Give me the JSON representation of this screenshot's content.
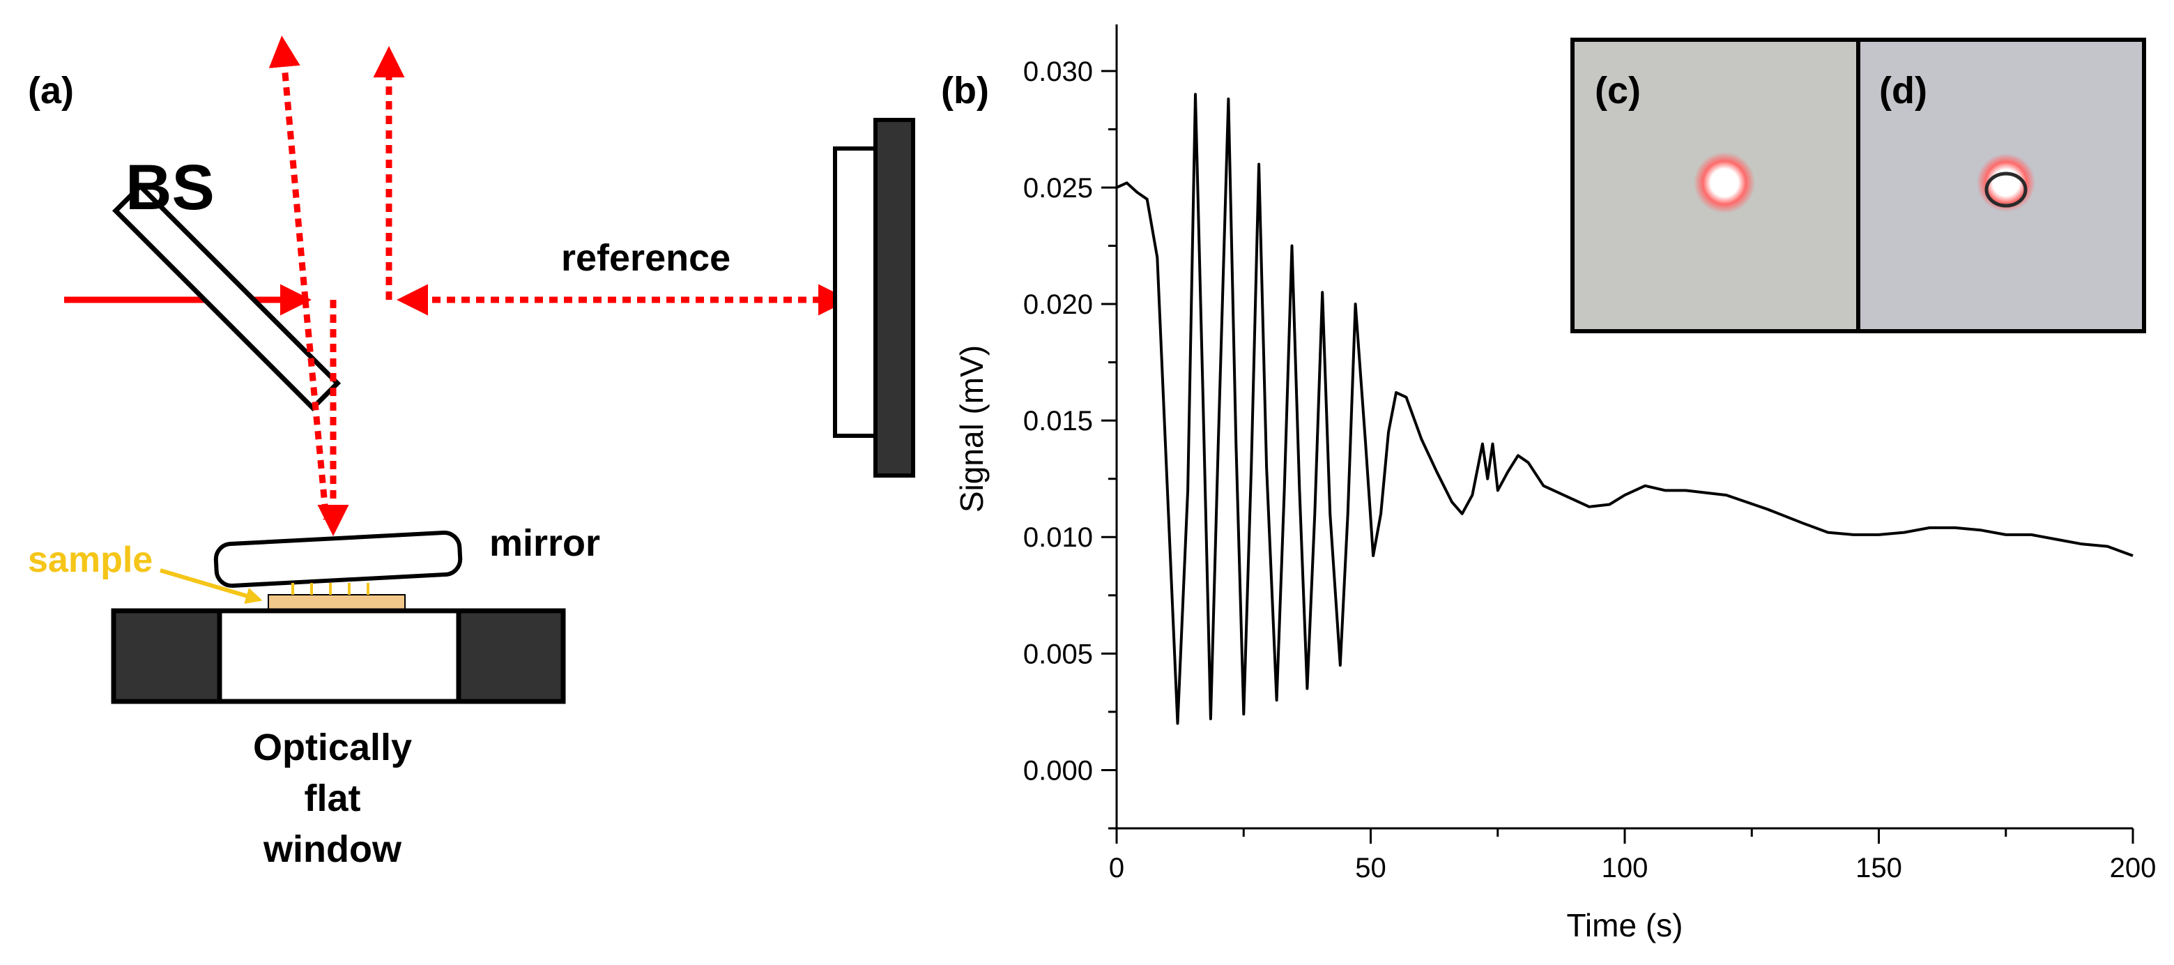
{
  "panels": {
    "a": "(a)",
    "b": "(b)",
    "c": "(c)",
    "d": "(d)"
  },
  "diagram": {
    "bs_label": "BS",
    "reference_label": "reference",
    "mirror_label": "mirror",
    "sample_label": "sample",
    "window_label_lines": [
      "Optically",
      "flat",
      "window"
    ],
    "colors": {
      "beam": "#ff0000",
      "sample": "#f5c518",
      "sample_fill": "#f2c78a",
      "dark": "#333333"
    }
  },
  "chart_data": {
    "type": "line",
    "xlabel": "Time (s)",
    "ylabel": "Signal (mV)",
    "xlim": [
      0,
      200
    ],
    "ylim": [
      -0.0025,
      0.032
    ],
    "x_ticks": [
      0,
      50,
      100,
      150,
      200
    ],
    "y_ticks": [
      0.0,
      0.005,
      0.01,
      0.015,
      0.02,
      0.025,
      0.03
    ],
    "y_tick_labels": [
      "0.000",
      "0.005",
      "0.010",
      "0.015",
      "0.020",
      "0.025",
      "0.030"
    ],
    "grid": false,
    "series": [
      {
        "color": "#000000",
        "x": [
          0,
          2,
          4,
          6,
          8,
          10,
          12,
          14,
          15.5,
          17,
          18.5,
          20,
          22,
          23.5,
          25,
          26.5,
          28,
          29.5,
          31.5,
          33,
          34.5,
          36,
          37.5,
          39,
          40.5,
          42,
          44,
          45.5,
          47,
          49,
          50.5,
          52,
          53.5,
          55,
          57,
          60,
          63,
          66,
          68,
          70,
          72,
          73,
          74,
          75,
          77,
          79,
          81,
          84,
          88,
          93,
          97,
          100,
          104,
          108,
          112,
          120,
          128,
          135,
          140,
          145,
          150,
          155,
          160,
          165,
          170,
          175,
          180,
          185,
          190,
          195,
          200
        ],
        "y": [
          0.025,
          0.0252,
          0.0248,
          0.0245,
          0.022,
          0.012,
          0.002,
          0.012,
          0.029,
          0.016,
          0.0022,
          0.014,
          0.0288,
          0.014,
          0.0024,
          0.013,
          0.026,
          0.013,
          0.003,
          0.012,
          0.0225,
          0.012,
          0.0035,
          0.011,
          0.0205,
          0.011,
          0.0045,
          0.011,
          0.02,
          0.014,
          0.0092,
          0.011,
          0.0145,
          0.0162,
          0.016,
          0.0142,
          0.0128,
          0.0115,
          0.011,
          0.0118,
          0.014,
          0.0125,
          0.014,
          0.012,
          0.0128,
          0.0135,
          0.0132,
          0.0122,
          0.0118,
          0.0113,
          0.0114,
          0.0118,
          0.0122,
          0.012,
          0.012,
          0.0118,
          0.0112,
          0.0106,
          0.0102,
          0.0101,
          0.0101,
          0.0102,
          0.0104,
          0.0104,
          0.0103,
          0.0101,
          0.0101,
          0.0099,
          0.0097,
          0.0096,
          0.0092
        ]
      }
    ]
  }
}
